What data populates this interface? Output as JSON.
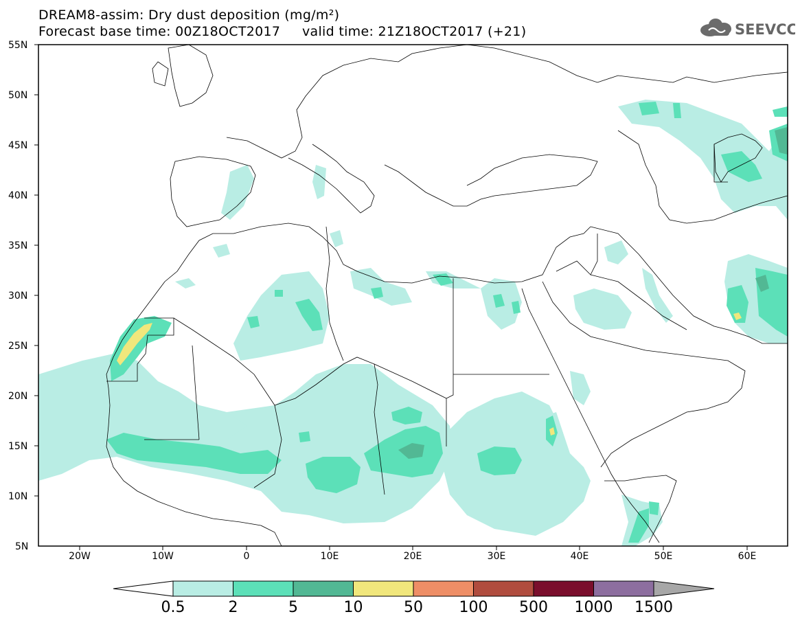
{
  "header": {
    "line1": "DREAM8-assim: Dry dust deposition (mg/m²)",
    "line2": "Forecast base time: 00Z18OCT2017     valid time: 21Z18OCT2017 (+21)"
  },
  "logo": {
    "text": "SEEVCCC",
    "icon": "cloud-icon",
    "color": "#666666"
  },
  "axes": {
    "lat_labels": [
      "55N",
      "50N",
      "45N",
      "40N",
      "35N",
      "30N",
      "25N",
      "20N",
      "15N",
      "10N",
      "5N"
    ],
    "lon_labels": [
      "20W",
      "10W",
      "0",
      "10E",
      "20E",
      "30E",
      "40E",
      "50E",
      "60E"
    ]
  },
  "colorbar": {
    "colors": [
      "#b9ede4",
      "#5ce0b8",
      "#52b894",
      "#f1e77c",
      "#ee8e66",
      "#b04c3e",
      "#7a0e2c",
      "#8d6e9f",
      "#a7a7a7"
    ],
    "labels": [
      "0.5",
      "2",
      "5",
      "10",
      "50",
      "100",
      "500",
      "1000",
      "1500"
    ]
  }
}
